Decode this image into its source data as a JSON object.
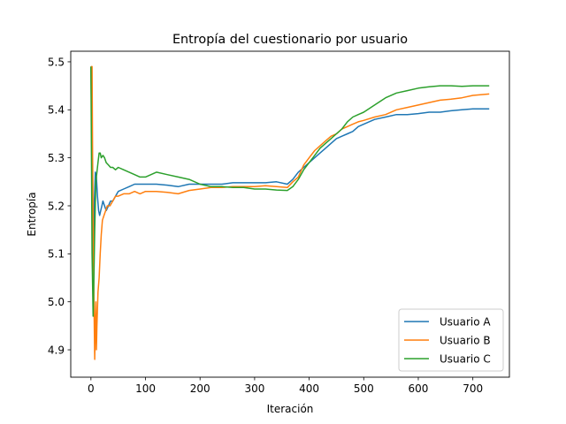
{
  "chart_data": {
    "type": "line",
    "title": "Entropía del cuestionario por usuario",
    "xlabel": "Iteración",
    "ylabel": "Entropía",
    "xlim": [
      -37,
      767
    ],
    "ylim": [
      4.843,
      5.522
    ],
    "xticks": [
      0,
      100,
      200,
      300,
      400,
      500,
      600,
      700
    ],
    "yticks": [
      4.9,
      5.0,
      5.1,
      5.2,
      5.3,
      5.4,
      5.5
    ],
    "ytick_labels": [
      "4.9",
      "5.0",
      "5.1",
      "5.2",
      "5.3",
      "5.4",
      "5.5"
    ],
    "grid": false,
    "legend_position": "lower right",
    "series": [
      {
        "name": "Usuario A",
        "color": "#1f77b4",
        "x": [
          0,
          2,
          4,
          6,
          8,
          10,
          12,
          14,
          16,
          18,
          20,
          22,
          25,
          28,
          32,
          36,
          40,
          45,
          50,
          60,
          70,
          80,
          90,
          100,
          120,
          140,
          160,
          180,
          200,
          220,
          240,
          260,
          280,
          300,
          320,
          340,
          360,
          370,
          380,
          390,
          400,
          410,
          420,
          430,
          440,
          450,
          460,
          470,
          480,
          490,
          500,
          520,
          540,
          560,
          580,
          600,
          620,
          640,
          660,
          680,
          700,
          730
        ],
        "y": [
          5.49,
          5.3,
          5.08,
          5.2,
          5.27,
          5.26,
          5.22,
          5.19,
          5.18,
          5.19,
          5.2,
          5.21,
          5.2,
          5.19,
          5.2,
          5.21,
          5.21,
          5.22,
          5.23,
          5.235,
          5.24,
          5.245,
          5.245,
          5.245,
          5.245,
          5.243,
          5.24,
          5.245,
          5.245,
          5.245,
          5.245,
          5.248,
          5.248,
          5.248,
          5.248,
          5.25,
          5.245,
          5.255,
          5.27,
          5.28,
          5.29,
          5.3,
          5.31,
          5.32,
          5.33,
          5.34,
          5.345,
          5.35,
          5.355,
          5.365,
          5.37,
          5.38,
          5.385,
          5.39,
          5.39,
          5.392,
          5.395,
          5.395,
          5.398,
          5.4,
          5.402,
          5.402
        ]
      },
      {
        "name": "Usuario B",
        "color": "#ff7f0e",
        "x": [
          0,
          2,
          3,
          5,
          7,
          8,
          9,
          10,
          11,
          13,
          15,
          17,
          19,
          21,
          24,
          27,
          30,
          35,
          40,
          45,
          50,
          60,
          70,
          80,
          90,
          100,
          120,
          140,
          160,
          180,
          200,
          220,
          240,
          260,
          280,
          300,
          320,
          340,
          360,
          370,
          380,
          390,
          400,
          410,
          420,
          430,
          440,
          450,
          460,
          470,
          480,
          490,
          500,
          520,
          540,
          560,
          580,
          600,
          620,
          640,
          660,
          680,
          700,
          730
        ],
        "y": [
          5.49,
          5.49,
          5.3,
          5.05,
          4.88,
          4.96,
          5.0,
          4.9,
          4.95,
          5.02,
          5.05,
          5.1,
          5.14,
          5.17,
          5.18,
          5.19,
          5.2,
          5.2,
          5.21,
          5.22,
          5.22,
          5.225,
          5.225,
          5.23,
          5.225,
          5.23,
          5.23,
          5.228,
          5.225,
          5.232,
          5.235,
          5.238,
          5.238,
          5.24,
          5.24,
          5.24,
          5.242,
          5.24,
          5.238,
          5.25,
          5.26,
          5.285,
          5.3,
          5.315,
          5.325,
          5.335,
          5.345,
          5.35,
          5.36,
          5.365,
          5.37,
          5.375,
          5.378,
          5.385,
          5.39,
          5.4,
          5.405,
          5.41,
          5.415,
          5.42,
          5.422,
          5.425,
          5.43,
          5.433
        ]
      },
      {
        "name": "Usuario C",
        "color": "#2ca02c",
        "x": [
          0,
          2,
          4,
          5,
          7,
          9,
          11,
          13,
          15,
          17,
          19,
          22,
          25,
          28,
          32,
          36,
          40,
          45,
          50,
          60,
          70,
          80,
          90,
          100,
          110,
          120,
          140,
          160,
          180,
          200,
          220,
          240,
          260,
          280,
          300,
          320,
          340,
          360,
          370,
          380,
          390,
          400,
          410,
          420,
          430,
          440,
          450,
          460,
          470,
          480,
          490,
          500,
          520,
          540,
          560,
          580,
          600,
          620,
          640,
          660,
          680,
          700,
          730
        ],
        "y": [
          5.49,
          5.1,
          4.97,
          5.02,
          5.15,
          5.25,
          5.27,
          5.29,
          5.31,
          5.31,
          5.3,
          5.305,
          5.3,
          5.29,
          5.285,
          5.28,
          5.28,
          5.275,
          5.28,
          5.275,
          5.27,
          5.265,
          5.26,
          5.26,
          5.265,
          5.27,
          5.265,
          5.26,
          5.255,
          5.245,
          5.24,
          5.24,
          5.238,
          5.238,
          5.235,
          5.235,
          5.233,
          5.232,
          5.24,
          5.255,
          5.275,
          5.29,
          5.305,
          5.32,
          5.33,
          5.34,
          5.35,
          5.36,
          5.375,
          5.385,
          5.39,
          5.395,
          5.41,
          5.425,
          5.435,
          5.44,
          5.445,
          5.448,
          5.45,
          5.45,
          5.449,
          5.45,
          5.45
        ]
      }
    ]
  }
}
